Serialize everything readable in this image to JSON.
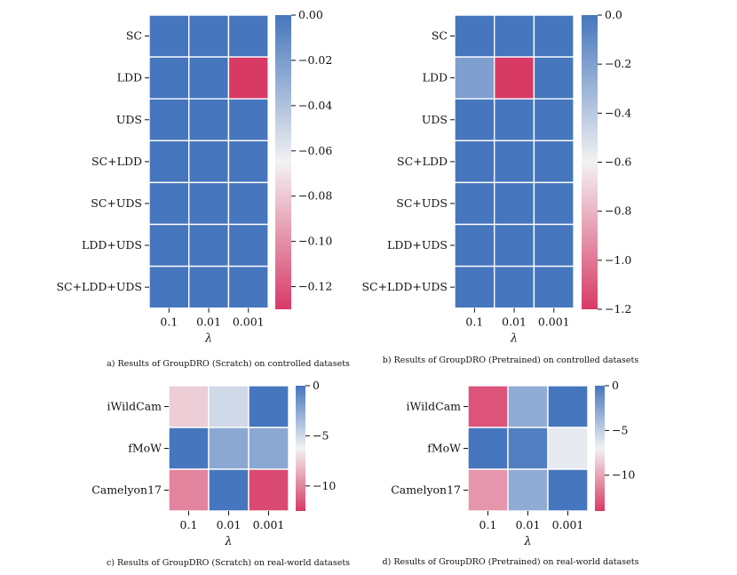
{
  "figure": {
    "name": "GroupDRO lambda sensitivity heatmaps"
  },
  "colors": {
    "high": "#4676bd",
    "mid": "#f2f2f2",
    "low": "#d83a66",
    "grid": "#ffffff"
  },
  "chart_data": [
    {
      "type": "heatmap",
      "caption": "a) Results of GroupDRO (Scratch) on controlled datasets",
      "xlabel": "λ",
      "categories": [
        "0.1",
        "0.01",
        "0.001"
      ],
      "rows": [
        "SC",
        "LDD",
        "UDS",
        "SC+LDD",
        "SC+UDS",
        "LDD+UDS",
        "SC+LDD+UDS"
      ],
      "values": [
        [
          0,
          0,
          0
        ],
        [
          0,
          0,
          -0.13
        ],
        [
          0,
          0,
          0
        ],
        [
          0,
          0,
          0
        ],
        [
          0,
          0,
          0
        ],
        [
          0,
          0,
          0
        ],
        [
          0,
          0,
          0
        ]
      ],
      "colorbar": {
        "range": [
          -0.13,
          0.0
        ],
        "ticks": [
          0.0,
          -0.02,
          -0.04,
          -0.06,
          -0.08,
          -0.1,
          -0.12
        ],
        "tick_labels": [
          "0.00",
          "−0.02",
          "−0.04",
          "−0.06",
          "−0.08",
          "−0.10",
          "−0.12"
        ]
      }
    },
    {
      "type": "heatmap",
      "caption": "b) Results of GroupDRO (Pretrained) on controlled datasets",
      "xlabel": "λ",
      "categories": [
        "0.1",
        "0.01",
        "0.001"
      ],
      "rows": [
        "SC",
        "LDD",
        "UDS",
        "SC+LDD",
        "SC+UDS",
        "LDD+UDS",
        "SC+LDD+UDS"
      ],
      "values": [
        [
          0,
          0,
          0
        ],
        [
          -0.2,
          -1.2,
          0
        ],
        [
          0,
          0,
          0
        ],
        [
          0,
          0,
          0
        ],
        [
          0,
          0,
          0
        ],
        [
          0,
          0,
          0
        ],
        [
          0,
          0,
          0
        ]
      ],
      "colorbar": {
        "range": [
          -1.2,
          0.0
        ],
        "ticks": [
          0.0,
          -0.2,
          -0.4,
          -0.6,
          -0.8,
          -1.0,
          -1.2
        ],
        "tick_labels": [
          "0.0",
          "−0.2",
          "−0.4",
          "−0.6",
          "−0.8",
          "−1.0",
          "−1.2"
        ]
      }
    },
    {
      "type": "heatmap",
      "caption": "c) Results of GroupDRO (Scratch) on real-world datasets",
      "xlabel": "λ",
      "categories": [
        "0.1",
        "0.01",
        "0.001"
      ],
      "rows": [
        "iWildCam",
        "fMoW",
        "Camelyon17"
      ],
      "values": [
        [
          -7.5,
          -5,
          0
        ],
        [
          0,
          -2.5,
          -2.5
        ],
        [
          -10,
          0,
          -12
        ]
      ],
      "colorbar": {
        "range": [
          -12.5,
          0.0
        ],
        "ticks": [
          0,
          -5,
          -10
        ],
        "tick_labels": [
          "0",
          "−5",
          "−10"
        ]
      }
    },
    {
      "type": "heatmap",
      "caption": "d) Results of GroupDRO (Pretrained) on real-world datasets",
      "xlabel": "λ",
      "categories": [
        "0.1",
        "0.01",
        "0.001"
      ],
      "rows": [
        "iWildCam",
        "fMoW",
        "Camelyon17"
      ],
      "values": [
        [
          -13,
          -3,
          0
        ],
        [
          0,
          -0.5,
          -6.5
        ],
        [
          -10.5,
          -3,
          0
        ]
      ],
      "colorbar": {
        "range": [
          -14.0,
          0.0
        ],
        "ticks": [
          0,
          -5,
          -10
        ],
        "tick_labels": [
          "0",
          "−5",
          "−10"
        ]
      }
    }
  ]
}
